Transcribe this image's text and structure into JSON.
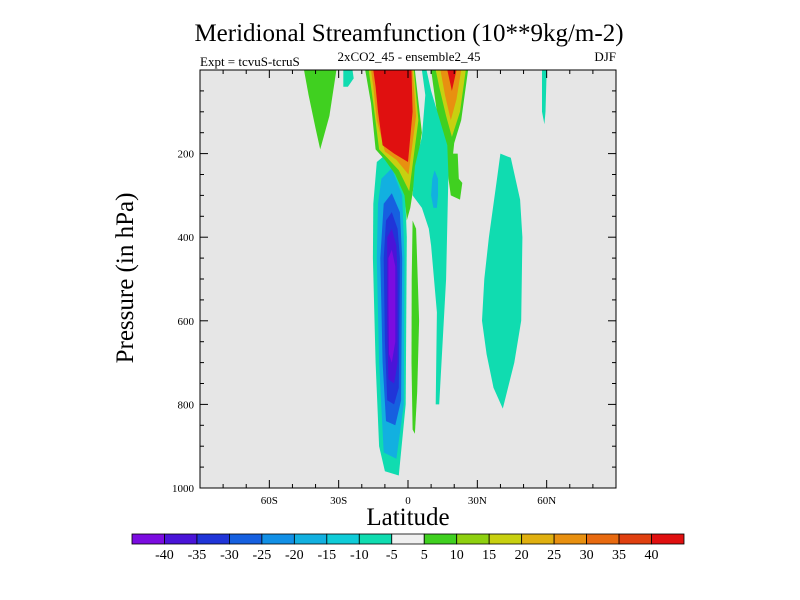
{
  "chart_data": {
    "type": "contour",
    "title": "Meridional Streamfunction (10**9kg/m-2)",
    "subtitle": "2xCO2_45 - ensemble2_45",
    "left_label": "Expt = tcvuS-tcruS",
    "right_label": "DJF",
    "xlabel": "Latitude",
    "ylabel": "Pressure (in hPa)",
    "x_ticks": [
      {
        "value": -60,
        "label": "60S"
      },
      {
        "value": -30,
        "label": "30S"
      },
      {
        "value": 0,
        "label": "0"
      },
      {
        "value": 30,
        "label": "30N"
      },
      {
        "value": 60,
        "label": "60N"
      }
    ],
    "xlim": [
      -90,
      90
    ],
    "y_ticks": [
      {
        "value": 200,
        "label": "200"
      },
      {
        "value": 400,
        "label": "400"
      },
      {
        "value": 600,
        "label": "600"
      },
      {
        "value": 800,
        "label": "800"
      },
      {
        "value": 1000,
        "label": "1000"
      }
    ],
    "ylim": [
      1000,
      0
    ],
    "y_reversed": true,
    "background_color": "#e6e6e6",
    "colorbar": {
      "colors": [
        "#7b0ce0",
        "#4a14d8",
        "#2035d8",
        "#1660e0",
        "#1290e6",
        "#12b0e0",
        "#10ccd8",
        "#10dcb0",
        "#f0f0f0",
        "#40d020",
        "#8ed010",
        "#c8d010",
        "#e0b010",
        "#e89010",
        "#e86a10",
        "#e04010",
        "#e01010"
      ],
      "labels": [
        "-40",
        "-35",
        "-30",
        "-25",
        "-20",
        "-15",
        "-10",
        "-5",
        "5",
        "10",
        "15",
        "20",
        "25",
        "30",
        "35",
        "40"
      ]
    },
    "regions": [
      {
        "name": "southern-deep-negative-cell",
        "color": "#10dcb0",
        "points": [
          [
            -13.5,
            220
          ],
          [
            -7,
            190
          ],
          [
            -1.5,
            250
          ],
          [
            -0.5,
            400
          ],
          [
            -1,
            800
          ],
          [
            -4,
            970
          ],
          [
            -10,
            960
          ],
          [
            -12.5,
            900
          ],
          [
            -14,
            700
          ],
          [
            -15.2,
            450
          ],
          [
            -15,
            320
          ]
        ]
      },
      {
        "name": "southern-deep-negative-cell",
        "color": "#12b0e0",
        "points": [
          [
            -11.5,
            260
          ],
          [
            -7,
            235
          ],
          [
            -2.5,
            300
          ],
          [
            -1.5,
            450
          ],
          [
            -1.8,
            800
          ],
          [
            -5,
            930
          ],
          [
            -10.5,
            915
          ],
          [
            -12.5,
            700
          ],
          [
            -13.5,
            450
          ],
          [
            -13,
            320
          ]
        ]
      },
      {
        "name": "southern-deep-negative-cell",
        "color": "#1660e0",
        "points": [
          [
            -10.5,
            320
          ],
          [
            -7,
            295
          ],
          [
            -3.5,
            340
          ],
          [
            -2.5,
            450
          ],
          [
            -3,
            790
          ],
          [
            -5.5,
            850
          ],
          [
            -9.5,
            840
          ],
          [
            -11,
            700
          ],
          [
            -12,
            450
          ]
        ]
      },
      {
        "name": "southern-deep-negative-cell",
        "color": "#2035d8",
        "points": [
          [
            -9.5,
            360
          ],
          [
            -7,
            340
          ],
          [
            -4.5,
            380
          ],
          [
            -3.5,
            450
          ],
          [
            -4,
            760
          ],
          [
            -6,
            800
          ],
          [
            -9,
            790
          ],
          [
            -10,
            650
          ],
          [
            -10.5,
            450
          ]
        ]
      },
      {
        "name": "southern-deep-negative-cell",
        "color": "#4a14d8",
        "points": [
          [
            -9,
            400
          ],
          [
            -7,
            380
          ],
          [
            -5,
            420
          ],
          [
            -4.5,
            500
          ],
          [
            -4.5,
            700
          ],
          [
            -6,
            750
          ],
          [
            -8.5,
            740
          ],
          [
            -9,
            600
          ]
        ]
      },
      {
        "name": "southern-deep-negative-cell",
        "color": "#7b0ce0",
        "points": [
          [
            -8.5,
            450
          ],
          [
            -7,
            430
          ],
          [
            -5.5,
            470
          ],
          [
            -5.5,
            650
          ],
          [
            -7,
            700
          ],
          [
            -8.2,
            680
          ],
          [
            -8.5,
            550
          ]
        ]
      },
      {
        "name": "upper-positive-cell",
        "color": "#40d020",
        "points": [
          [
            -18.5,
            0
          ],
          [
            3,
            0
          ],
          [
            6,
            150
          ],
          [
            1,
            330
          ],
          [
            -0.5,
            360
          ],
          [
            -1.5,
            300
          ],
          [
            -5.5,
            250
          ],
          [
            -10,
            215
          ],
          [
            -14,
            190
          ],
          [
            -16,
            80
          ]
        ]
      },
      {
        "name": "upper-positive-cell",
        "color": "#c8d010",
        "points": [
          [
            -17,
            0
          ],
          [
            2.5,
            0
          ],
          [
            4.5,
            120
          ],
          [
            0.5,
            290
          ],
          [
            -4,
            240
          ],
          [
            -9,
            210
          ],
          [
            -12.5,
            190
          ],
          [
            -15,
            80
          ]
        ]
      },
      {
        "name": "upper-positive-cell",
        "color": "#e89010",
        "points": [
          [
            -16,
            0
          ],
          [
            2,
            0
          ],
          [
            3.5,
            110
          ],
          [
            0.2,
            250
          ],
          [
            -5,
            215
          ],
          [
            -10,
            195
          ],
          [
            -13.5,
            120
          ],
          [
            -15,
            40
          ]
        ]
      },
      {
        "name": "upper-positive-cell",
        "color": "#e01010",
        "points": [
          [
            -15,
            0
          ],
          [
            1.5,
            0
          ],
          [
            2,
            100
          ],
          [
            0,
            220
          ],
          [
            -6,
            200
          ],
          [
            -11,
            180
          ],
          [
            -13,
            100
          ],
          [
            -14,
            40
          ]
        ]
      },
      {
        "name": "upper-positive-northern-cell",
        "color": "#40d020",
        "points": [
          [
            10,
            0
          ],
          [
            26,
            0
          ],
          [
            23,
            120
          ],
          [
            20,
            175
          ],
          [
            19.5,
            200
          ],
          [
            21.5,
            200
          ],
          [
            22,
            260
          ],
          [
            23.5,
            270
          ],
          [
            22.5,
            310
          ],
          [
            18.5,
            300
          ],
          [
            16,
            200
          ],
          [
            13,
            120
          ]
        ]
      },
      {
        "name": "upper-positive-northern-cell",
        "color": "#c8d010",
        "points": [
          [
            12,
            0
          ],
          [
            25,
            0
          ],
          [
            22.5,
            100
          ],
          [
            19,
            160
          ],
          [
            16.5,
            110
          ],
          [
            13.5,
            40
          ]
        ]
      },
      {
        "name": "upper-positive-northern-cell",
        "color": "#e89010",
        "points": [
          [
            14,
            0
          ],
          [
            23,
            0
          ],
          [
            21,
            70
          ],
          [
            18.5,
            120
          ],
          [
            16,
            60
          ]
        ]
      },
      {
        "name": "upper-positive-northern-cell",
        "color": "#e01010",
        "points": [
          [
            17,
            0
          ],
          [
            21,
            0
          ],
          [
            19,
            50
          ]
        ]
      },
      {
        "name": "upper-left-positive-patch",
        "color": "#40d020",
        "points": [
          [
            -45,
            0
          ],
          [
            -31,
            0
          ],
          [
            -34,
            110
          ],
          [
            -38,
            190
          ],
          [
            -40,
            140
          ],
          [
            -43,
            60
          ]
        ]
      },
      {
        "name": "small-negative-patch",
        "color": "#10dcb0",
        "points": [
          [
            -28,
            0
          ],
          [
            -24,
            0
          ],
          [
            -23.5,
            20
          ],
          [
            -26,
            40
          ],
          [
            -28,
            40
          ]
        ]
      },
      {
        "name": "equatorial-negative-column",
        "color": "#10dcb0",
        "points": [
          [
            6,
            0
          ],
          [
            8,
            0
          ],
          [
            10,
            50
          ],
          [
            17,
            180
          ],
          [
            17.5,
            250
          ],
          [
            16.5,
            500
          ],
          [
            14.5,
            700
          ],
          [
            13.5,
            800
          ],
          [
            12,
            800
          ],
          [
            12.5,
            580
          ],
          [
            10,
            420
          ],
          [
            9,
            380
          ],
          [
            6,
            330
          ],
          [
            2,
            300
          ],
          [
            3,
            230
          ],
          [
            6,
            160
          ],
          [
            7.5,
            60
          ]
        ]
      },
      {
        "name": "equatorial-negative-column",
        "color": "#12b0e0",
        "points": [
          [
            11.5,
            240
          ],
          [
            13,
            260
          ],
          [
            13,
            300
          ],
          [
            12.5,
            330
          ],
          [
            11,
            330
          ],
          [
            10,
            300
          ],
          [
            10.5,
            260
          ]
        ]
      },
      {
        "name": "narrow-positive-strip",
        "color": "#40d020",
        "points": [
          [
            2,
            360
          ],
          [
            3.5,
            380
          ],
          [
            4.8,
            600
          ],
          [
            4,
            770
          ],
          [
            3,
            870
          ],
          [
            2,
            860
          ],
          [
            1.5,
            700
          ],
          [
            1.6,
            500
          ]
        ]
      },
      {
        "name": "northern-negative-cell",
        "color": "#10dcb0",
        "points": [
          [
            40,
            200
          ],
          [
            44.5,
            210
          ],
          [
            48.5,
            310
          ],
          [
            49.5,
            400
          ],
          [
            49,
            600
          ],
          [
            46,
            700
          ],
          [
            41,
            810
          ],
          [
            37,
            760
          ],
          [
            34,
            680
          ],
          [
            32,
            600
          ],
          [
            33,
            500
          ],
          [
            35,
            400
          ],
          [
            38.5,
            260
          ]
        ]
      },
      {
        "name": "thin-negative-sliver",
        "color": "#10dcb0",
        "points": [
          [
            58,
            0
          ],
          [
            60,
            0
          ],
          [
            59.5,
            100
          ],
          [
            59,
            130
          ],
          [
            58,
            100
          ]
        ]
      }
    ]
  }
}
